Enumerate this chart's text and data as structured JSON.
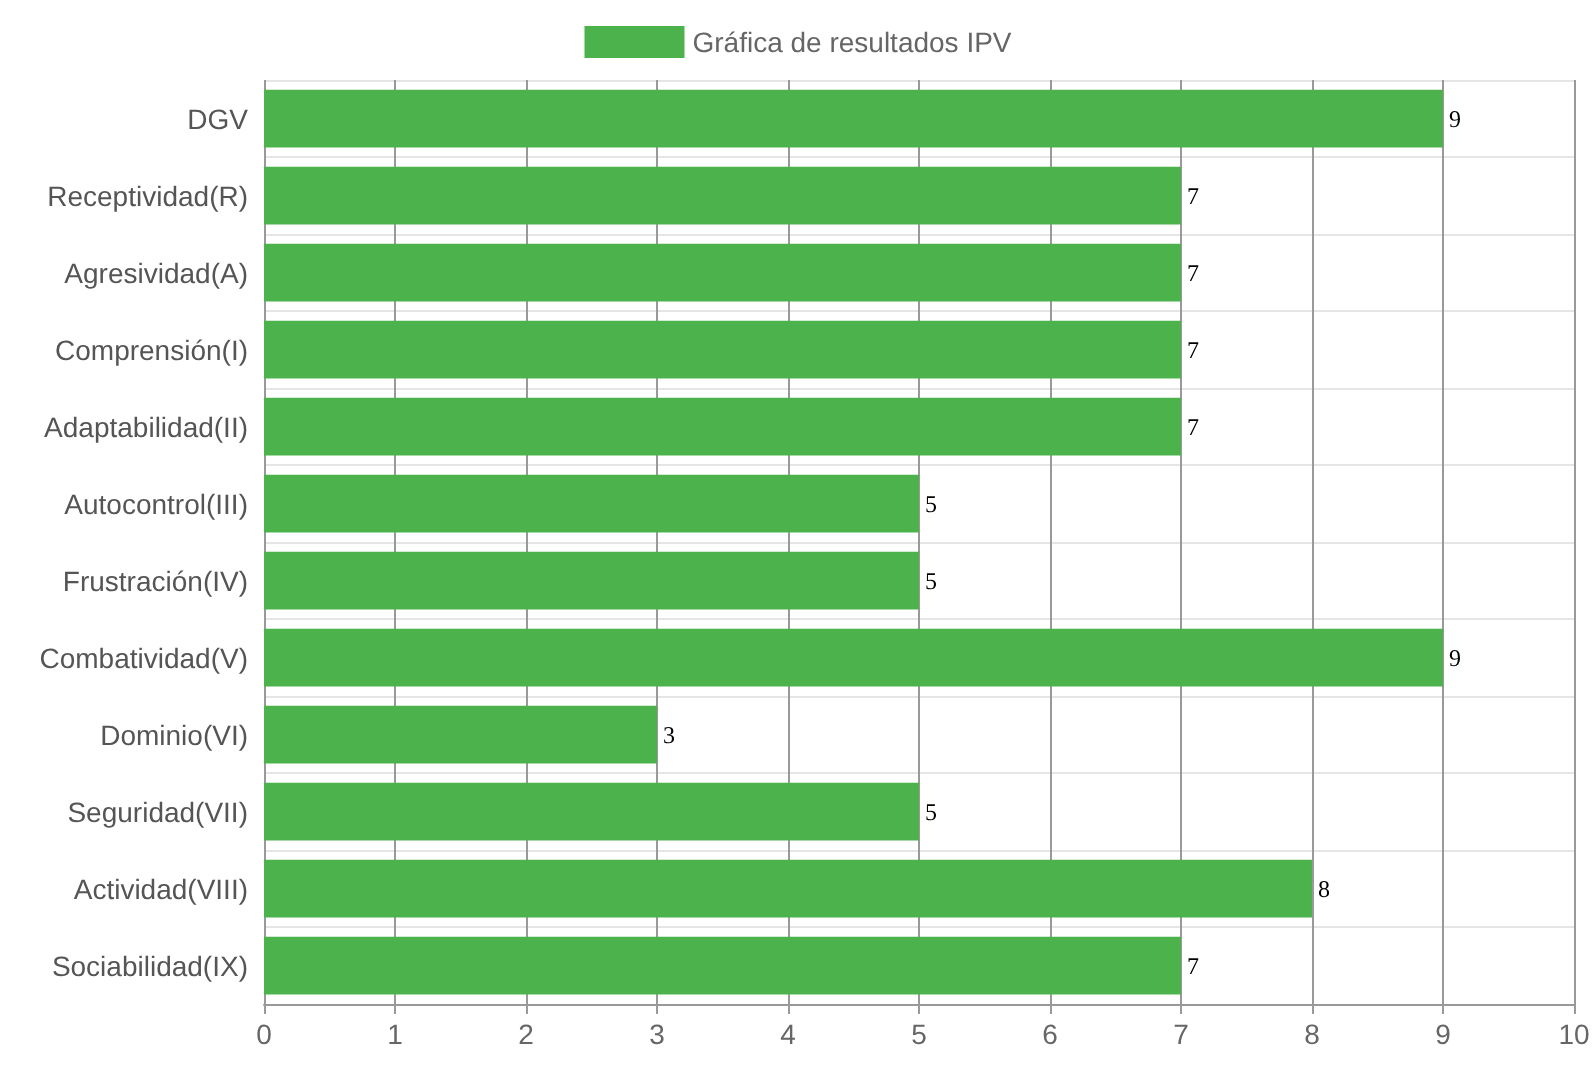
{
  "chart_data": {
    "type": "bar",
    "orientation": "horizontal",
    "categories": [
      "DGV",
      "Receptividad(R)",
      "Agresividad(A)",
      "Comprensión(I)",
      "Adaptabilidad(II)",
      "Autocontrol(III)",
      "Frustración(IV)",
      "Combatividad(V)",
      "Dominio(VI)",
      "Seguridad(VII)",
      "Actividad(VIII)",
      "Sociabilidad(IX)"
    ],
    "series": [
      {
        "name": "Gráfica de resultados IPV",
        "color": "#4cb34c",
        "values": [
          9,
          7,
          7,
          7,
          7,
          5,
          5,
          9,
          3,
          5,
          8,
          7
        ]
      }
    ],
    "xlim": [
      0,
      10
    ],
    "xticks": [
      0,
      1,
      2,
      3,
      4,
      5,
      6,
      7,
      8,
      9,
      10
    ],
    "grid": true,
    "legend": "top",
    "data_labels": true
  }
}
